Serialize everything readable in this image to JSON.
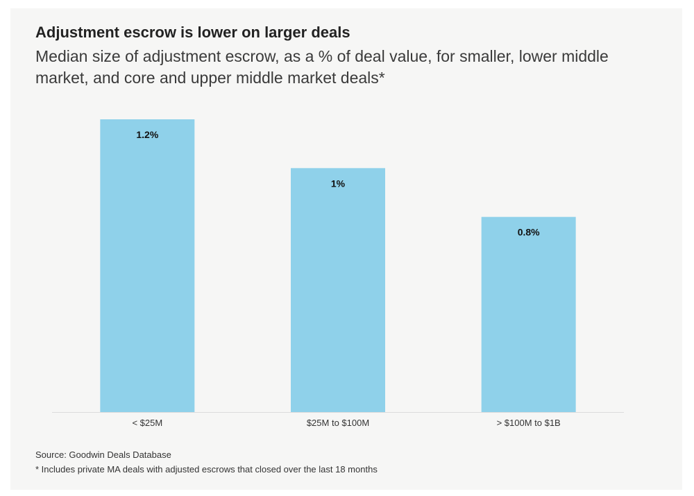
{
  "chart_data": {
    "type": "bar",
    "title": "Adjustment escrow is lower on larger deals",
    "subtitle": "Median size of adjustment escrow, as a % of deal value, for smaller, lower middle market, and core and upper middle market deals*",
    "categories": [
      "< $25M",
      "$25M to $100M",
      "> $100M to $1B"
    ],
    "values": [
      1.2,
      1.0,
      0.8
    ],
    "data_labels": [
      "1.2%",
      "1%",
      "0.8%"
    ],
    "xlabel": "",
    "ylabel": "",
    "ylim": [
      0,
      1.2
    ],
    "grid": false,
    "bar_color": "#8fd1ea"
  },
  "footer": {
    "source": "Source: Goodwin Deals Database",
    "note": "* Includes private MA deals with adjusted escrows that closed over the last 18 months"
  }
}
